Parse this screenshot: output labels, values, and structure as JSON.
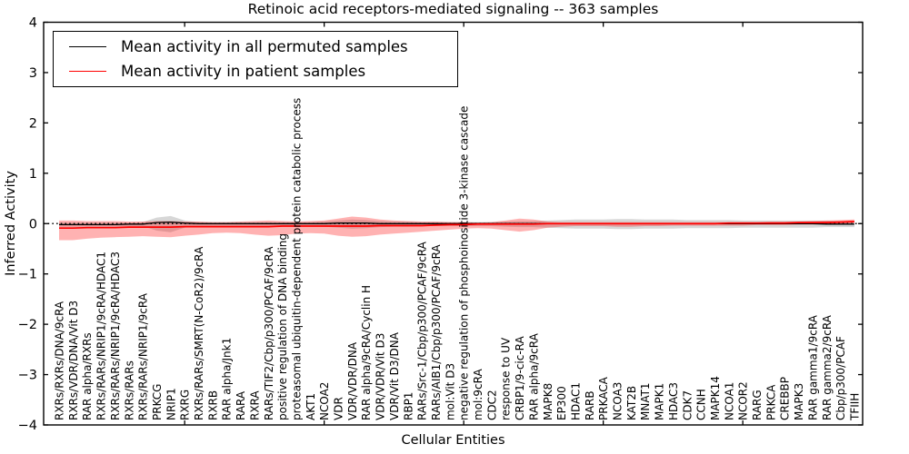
{
  "title": "Retinoic acid receptors-mediated signaling -- 363 samples",
  "axes": {
    "xlabel": "Cellular Entities",
    "ylabel": "Inferred Activity",
    "ytick_labels": [
      "4",
      "3",
      "2",
      "1",
      "0",
      "−1",
      "−2",
      "−3",
      "−4"
    ]
  },
  "legend": {
    "items": [
      {
        "label": "Mean activity in all permuted samples",
        "color": "#000000"
      },
      {
        "label": "Mean activity in patient samples",
        "color": "#ff0000"
      }
    ]
  },
  "colors": {
    "permuted_line": "#000000",
    "permuted_band": "#999999",
    "patient_line": "#ff0000",
    "patient_band": "#ff0000",
    "zero_line": "#000000"
  },
  "chart_data": {
    "type": "line",
    "title": "Retinoic acid receptors-mediated signaling -- 363 samples",
    "xlabel": "Cellular Entities",
    "ylabel": "Inferred Activity",
    "ylim": [
      -4,
      4
    ],
    "grid": false,
    "legend_position": "upper left",
    "zero_reference_line": true,
    "categories": [
      "RXRs/RXRs/DNA/9cRA",
      "RXRs/VDR/DNA/Vit D3",
      "RAR alpha/RXRs",
      "RXRs/RARs/NRIP1/9cRA/HDAC1",
      "RXRs/RARs/NRIP1/9cRA/HDAC3",
      "RXRs/RARs",
      "RXRs/RARs/NRIP1/9cRA",
      "PRKCG",
      "NRIP1",
      "RXRG",
      "RXRs/RARs/SMRT(N-CoR2)/9cRA",
      "RXRB",
      "RAR alpha/Jnk1",
      "RARA",
      "RXRA",
      "RARs/TIF2/Cbp/p300/PCAF/9cRA",
      "positive regulation of DNA binding",
      "proteasomal ubiquitin-dependent protein catabolic process",
      "AKT1",
      "NCOA2",
      "VDR",
      "VDR/VDR/DNA",
      "RAR alpha/9cRA/Cyclin H",
      "VDR/VDR/Vit D3",
      "VDR/Vit D3/DNA",
      "RBP1",
      "RARs/Src-1/Cbp/p300/PCAF/9cRA",
      "RARs/AIB1/Cbp/p300/PCAF/9cRA",
      "mol:Vit D3",
      "negative regulation of phosphoinositide 3-kinase cascade",
      "mol:9cRA",
      "CDC2",
      "response to UV",
      "CRBP1/9-cic-RA",
      "RAR alpha/9cRA",
      "MAPK8",
      "EP300",
      "HDAC1",
      "RARB",
      "PRKACA",
      "NCOA3",
      "KAT2B",
      "MNAT1",
      "MAPK1",
      "HDAC3",
      "CDK7",
      "CCNH",
      "MAPK14",
      "NCOA1",
      "NCOR2",
      "RARG",
      "PRKCA",
      "CREBBP",
      "MAPK3",
      "RAR gamma1/9cRA",
      "RAR gamma2/9cRA",
      "Cbp/p300/PCAF",
      "TFIIH"
    ],
    "series": [
      {
        "name": "Mean activity in all permuted samples",
        "color": "#000000",
        "values": [
          -0.02,
          -0.02,
          -0.02,
          -0.02,
          -0.02,
          -0.01,
          -0.01,
          0.02,
          0.03,
          0.01,
          0,
          0,
          0,
          0,
          0,
          0,
          0,
          0,
          0,
          0,
          0.01,
          0.01,
          0.01,
          0,
          0,
          0,
          0,
          0,
          0,
          0,
          0,
          0,
          0,
          0,
          0,
          0,
          0,
          0,
          0,
          0,
          0,
          0,
          0,
          0,
          0,
          0,
          0,
          0,
          0,
          0,
          0,
          0,
          0,
          0,
          0,
          -0.01,
          -0.01,
          -0.01
        ],
        "band_upper": [
          0.02,
          0.02,
          0.02,
          0.02,
          0.02,
          0.02,
          0.03,
          0.12,
          0.15,
          0.06,
          0.03,
          0.03,
          0.03,
          0.03,
          0.03,
          0.03,
          0.03,
          0.03,
          0.03,
          0.04,
          0.06,
          0.08,
          0.07,
          0.05,
          0.04,
          0.04,
          0.03,
          0.03,
          0.03,
          0.03,
          0.03,
          0.03,
          0.04,
          0.05,
          0.05,
          0.06,
          0.07,
          0.08,
          0.08,
          0.08,
          0.09,
          0.09,
          0.08,
          0.08,
          0.08,
          0.07,
          0.07,
          0.07,
          0.07,
          0.06,
          0.06,
          0.06,
          0.06,
          0.06,
          0.06,
          0.06,
          0.05,
          0.05
        ],
        "band_lower": [
          -0.06,
          -0.06,
          -0.06,
          -0.06,
          -0.06,
          -0.05,
          -0.05,
          -0.14,
          -0.17,
          -0.08,
          -0.05,
          -0.05,
          -0.05,
          -0.05,
          -0.05,
          -0.05,
          -0.05,
          -0.05,
          -0.05,
          -0.06,
          -0.08,
          -0.1,
          -0.09,
          -0.07,
          -0.06,
          -0.06,
          -0.05,
          -0.05,
          -0.05,
          -0.05,
          -0.05,
          -0.05,
          -0.06,
          -0.07,
          -0.07,
          -0.08,
          -0.09,
          -0.1,
          -0.1,
          -0.1,
          -0.11,
          -0.11,
          -0.1,
          -0.1,
          -0.1,
          -0.09,
          -0.09,
          -0.09,
          -0.09,
          -0.08,
          -0.08,
          -0.08,
          -0.08,
          -0.08,
          -0.08,
          -0.07,
          -0.07,
          -0.07
        ]
      },
      {
        "name": "Mean activity in patient samples",
        "color": "#ff0000",
        "values": [
          -0.09,
          -0.09,
          -0.08,
          -0.08,
          -0.08,
          -0.07,
          -0.07,
          -0.07,
          -0.07,
          -0.06,
          -0.06,
          -0.06,
          -0.06,
          -0.06,
          -0.06,
          -0.06,
          -0.05,
          -0.05,
          -0.05,
          -0.05,
          -0.05,
          -0.05,
          -0.05,
          -0.04,
          -0.04,
          -0.04,
          -0.04,
          -0.03,
          -0.02,
          -0.02,
          -0.01,
          -0.01,
          -0.01,
          -0.01,
          -0.01,
          0,
          0,
          0,
          0,
          0,
          0,
          0,
          0,
          0,
          0,
          0,
          0,
          0,
          0.01,
          0.01,
          0.01,
          0.01,
          0.01,
          0.02,
          0.02,
          0.02,
          0.03,
          0.04
        ],
        "band_upper": [
          0.06,
          0.06,
          0.05,
          0.05,
          0.05,
          0.04,
          0.04,
          0.05,
          0.05,
          0.04,
          0.04,
          0.03,
          0.03,
          0.04,
          0.05,
          0.06,
          0.05,
          0.04,
          0.05,
          0.06,
          0.1,
          0.14,
          0.12,
          0.08,
          0.06,
          0.05,
          0.04,
          0.04,
          0.03,
          0.03,
          0.02,
          0.03,
          0.06,
          0.1,
          0.08,
          0.04,
          0.03,
          0.03,
          0.03,
          0.03,
          0.03,
          0.03,
          0.03,
          0.03,
          0.03,
          0.03,
          0.03,
          0.03,
          0.03,
          0.03,
          0.03,
          0.04,
          0.04,
          0.04,
          0.05,
          0.06,
          0.07,
          0.08
        ],
        "band_lower": [
          -0.33,
          -0.33,
          -0.3,
          -0.28,
          -0.27,
          -0.26,
          -0.25,
          -0.26,
          -0.27,
          -0.24,
          -0.22,
          -0.19,
          -0.18,
          -0.19,
          -0.22,
          -0.24,
          -0.23,
          -0.2,
          -0.19,
          -0.2,
          -0.24,
          -0.26,
          -0.25,
          -0.22,
          -0.2,
          -0.18,
          -0.16,
          -0.14,
          -0.12,
          -0.1,
          -0.09,
          -0.1,
          -0.13,
          -0.16,
          -0.13,
          -0.08,
          -0.06,
          -0.05,
          -0.05,
          -0.05,
          -0.06,
          -0.06,
          -0.05,
          -0.05,
          -0.04,
          -0.04,
          -0.04,
          -0.04,
          -0.04,
          -0.04,
          -0.03,
          -0.03,
          -0.03,
          -0.02,
          -0.02,
          -0.01,
          0,
          0.01
        ]
      }
    ]
  }
}
